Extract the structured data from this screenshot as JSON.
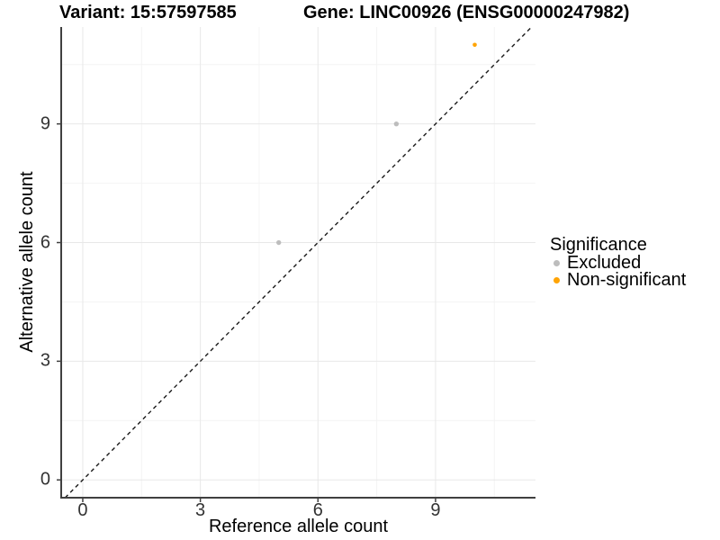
{
  "titles": {
    "variant": "Variant: 15:57597585",
    "gene": "Gene: LINC00926 (ENSG00000247982)"
  },
  "chart_data": {
    "type": "scatter",
    "xlabel": "Reference allele count",
    "ylabel": "Alternative allele count",
    "xlim": [
      -0.55,
      11.55
    ],
    "ylim": [
      -0.45,
      11.45
    ],
    "x_ticks": [
      0,
      3,
      6,
      9
    ],
    "y_ticks": [
      0,
      3,
      6,
      9
    ],
    "x_minor_ticks": [
      1.5,
      4.5,
      7.5,
      10.5
    ],
    "y_minor_ticks": [
      1.5,
      4.5,
      7.5,
      10.5
    ],
    "grid": true,
    "legend_position": "right",
    "series": [
      {
        "name": "Excluded",
        "color": "#BDBDBD",
        "point_radius": 2.7,
        "points": [
          {
            "x": 5,
            "y": 6
          },
          {
            "x": 8,
            "y": 9
          }
        ]
      },
      {
        "name": "Non-significant",
        "color": "#FFA405",
        "point_radius": 2.3,
        "points": [
          {
            "x": 10,
            "y": 11
          }
        ]
      }
    ],
    "reference_line": {
      "slope": 1,
      "intercept": 0,
      "style": "dashed",
      "color": "#1A1A1A"
    }
  },
  "legend": {
    "title": "Significance",
    "items": [
      {
        "label": "Excluded",
        "color": "#BDBDBD"
      },
      {
        "label": "Non-significant",
        "color": "#FFA405"
      }
    ]
  },
  "colors": {
    "background": "#FFFFFF",
    "axis_line": "#404040",
    "tick_mark": "#404040",
    "tick_label": "#333333",
    "grid_major": "#E8E8E8",
    "grid_minor": "#F4F4F4"
  }
}
